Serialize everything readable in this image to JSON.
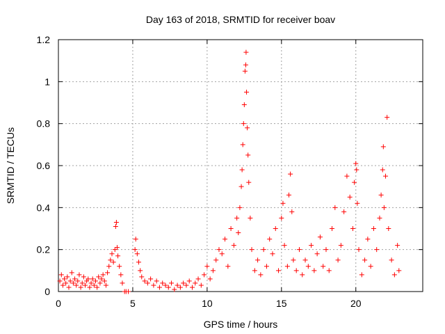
{
  "chart_data": {
    "type": "scatter",
    "title": "Day 163 of 2018, SRMTID for receiver boav",
    "xlabel": "GPS time / hours",
    "ylabel": "SRMTID / TECUs",
    "xlim": [
      0,
      24.5
    ],
    "ylim": [
      0,
      1.2
    ],
    "xticks": [
      0,
      5,
      10,
      15,
      20
    ],
    "xtick_labels": [
      "0",
      "5",
      "10",
      "15",
      "20"
    ],
    "yticks": [
      0,
      0.2,
      0.4,
      0.6,
      0.8,
      1.0,
      1.2
    ],
    "ytick_labels": [
      "0",
      "0.2",
      "0.4",
      "0.6",
      "0.8",
      "1",
      "1.2"
    ],
    "grid": true,
    "marker": "plus",
    "series": [
      {
        "name": "SRMTID",
        "color": "#ff0000",
        "points": [
          [
            0.1,
            0.05
          ],
          [
            0.2,
            0.08
          ],
          [
            0.3,
            0.03
          ],
          [
            0.4,
            0.06
          ],
          [
            0.5,
            0.04
          ],
          [
            0.6,
            0.07
          ],
          [
            0.7,
            0.02
          ],
          [
            0.8,
            0.05
          ],
          [
            0.9,
            0.09
          ],
          [
            1.0,
            0.04
          ],
          [
            1.1,
            0.06
          ],
          [
            1.2,
            0.03
          ],
          [
            1.3,
            0.05
          ],
          [
            1.4,
            0.08
          ],
          [
            1.5,
            0.02
          ],
          [
            1.6,
            0.04
          ],
          [
            1.7,
            0.07
          ],
          [
            1.8,
            0.03
          ],
          [
            1.9,
            0.05
          ],
          [
            2.0,
            0.06
          ],
          [
            2.1,
            0.02
          ],
          [
            2.2,
            0.04
          ],
          [
            2.3,
            0.06
          ],
          [
            2.4,
            0.03
          ],
          [
            2.5,
            0.05
          ],
          [
            2.6,
            0.02
          ],
          [
            2.7,
            0.07
          ],
          [
            2.8,
            0.04
          ],
          [
            2.9,
            0.06
          ],
          [
            3.0,
            0.08
          ],
          [
            3.1,
            0.05
          ],
          [
            3.2,
            0.03
          ],
          [
            3.3,
            0.09
          ],
          [
            3.4,
            0.12
          ],
          [
            3.5,
            0.15
          ],
          [
            3.6,
            0.18
          ],
          [
            3.7,
            0.14
          ],
          [
            3.8,
            0.2
          ],
          [
            3.85,
            0.31
          ],
          [
            3.9,
            0.33
          ],
          [
            3.95,
            0.21
          ],
          [
            4.0,
            0.17
          ],
          [
            4.1,
            0.12
          ],
          [
            4.2,
            0.08
          ],
          [
            4.3,
            0.04
          ],
          [
            4.45,
            0.0
          ],
          [
            4.55,
            0.0
          ],
          [
            4.7,
            0.0
          ],
          [
            5.15,
            0.2
          ],
          [
            5.2,
            0.25
          ],
          [
            5.3,
            0.18
          ],
          [
            5.4,
            0.14
          ],
          [
            5.5,
            0.1
          ],
          [
            5.6,
            0.07
          ],
          [
            5.8,
            0.05
          ],
          [
            6.0,
            0.04
          ],
          [
            6.2,
            0.06
          ],
          [
            6.4,
            0.03
          ],
          [
            6.6,
            0.05
          ],
          [
            6.8,
            0.02
          ],
          [
            7.0,
            0.04
          ],
          [
            7.2,
            0.03
          ],
          [
            7.4,
            0.02
          ],
          [
            7.6,
            0.04
          ],
          [
            7.8,
            0.01
          ],
          [
            8.0,
            0.03
          ],
          [
            8.2,
            0.02
          ],
          [
            8.4,
            0.04
          ],
          [
            8.6,
            0.03
          ],
          [
            8.8,
            0.05
          ],
          [
            9.0,
            0.02
          ],
          [
            9.2,
            0.04
          ],
          [
            9.4,
            0.06
          ],
          [
            9.6,
            0.03
          ],
          [
            9.8,
            0.08
          ],
          [
            10.0,
            0.12
          ],
          [
            10.2,
            0.06
          ],
          [
            10.4,
            0.1
          ],
          [
            10.6,
            0.15
          ],
          [
            10.8,
            0.2
          ],
          [
            11.0,
            0.18
          ],
          [
            11.2,
            0.25
          ],
          [
            11.4,
            0.12
          ],
          [
            11.6,
            0.3
          ],
          [
            11.8,
            0.22
          ],
          [
            12.0,
            0.35
          ],
          [
            12.1,
            0.28
          ],
          [
            12.2,
            0.4
          ],
          [
            12.3,
            0.5
          ],
          [
            12.35,
            0.58
          ],
          [
            12.4,
            0.7
          ],
          [
            12.45,
            0.8
          ],
          [
            12.5,
            0.89
          ],
          [
            12.55,
            1.05
          ],
          [
            12.6,
            1.08
          ],
          [
            12.62,
            1.14
          ],
          [
            12.65,
            0.95
          ],
          [
            12.7,
            0.78
          ],
          [
            12.75,
            0.65
          ],
          [
            12.8,
            0.52
          ],
          [
            12.9,
            0.35
          ],
          [
            13.0,
            0.2
          ],
          [
            13.2,
            0.1
          ],
          [
            13.4,
            0.15
          ],
          [
            13.6,
            0.08
          ],
          [
            13.8,
            0.2
          ],
          [
            14.0,
            0.12
          ],
          [
            14.2,
            0.25
          ],
          [
            14.4,
            0.18
          ],
          [
            14.6,
            0.3
          ],
          [
            14.8,
            0.1
          ],
          [
            15.0,
            0.35
          ],
          [
            15.1,
            0.42
          ],
          [
            15.2,
            0.22
          ],
          [
            15.4,
            0.12
          ],
          [
            15.5,
            0.46
          ],
          [
            15.6,
            0.56
          ],
          [
            15.7,
            0.38
          ],
          [
            15.8,
            0.15
          ],
          [
            16.0,
            0.1
          ],
          [
            16.2,
            0.2
          ],
          [
            16.4,
            0.08
          ],
          [
            16.6,
            0.15
          ],
          [
            16.8,
            0.12
          ],
          [
            17.0,
            0.22
          ],
          [
            17.2,
            0.1
          ],
          [
            17.4,
            0.18
          ],
          [
            17.6,
            0.26
          ],
          [
            17.8,
            0.12
          ],
          [
            18.0,
            0.2
          ],
          [
            18.2,
            0.1
          ],
          [
            18.4,
            0.3
          ],
          [
            18.6,
            0.4
          ],
          [
            18.8,
            0.15
          ],
          [
            19.0,
            0.22
          ],
          [
            19.2,
            0.38
          ],
          [
            19.4,
            0.55
          ],
          [
            19.6,
            0.45
          ],
          [
            19.8,
            0.3
          ],
          [
            19.9,
            0.52
          ],
          [
            20.0,
            0.61
          ],
          [
            20.05,
            0.58
          ],
          [
            20.1,
            0.42
          ],
          [
            20.2,
            0.2
          ],
          [
            20.4,
            0.08
          ],
          [
            20.6,
            0.15
          ],
          [
            20.8,
            0.25
          ],
          [
            21.0,
            0.12
          ],
          [
            21.2,
            0.3
          ],
          [
            21.4,
            0.2
          ],
          [
            21.6,
            0.35
          ],
          [
            21.7,
            0.46
          ],
          [
            21.8,
            0.58
          ],
          [
            21.85,
            0.69
          ],
          [
            21.9,
            0.4
          ],
          [
            22.0,
            0.55
          ],
          [
            22.1,
            0.83
          ],
          [
            22.2,
            0.3
          ],
          [
            22.4,
            0.15
          ],
          [
            22.6,
            0.08
          ],
          [
            22.8,
            0.22
          ],
          [
            22.9,
            0.1
          ]
        ]
      }
    ]
  }
}
